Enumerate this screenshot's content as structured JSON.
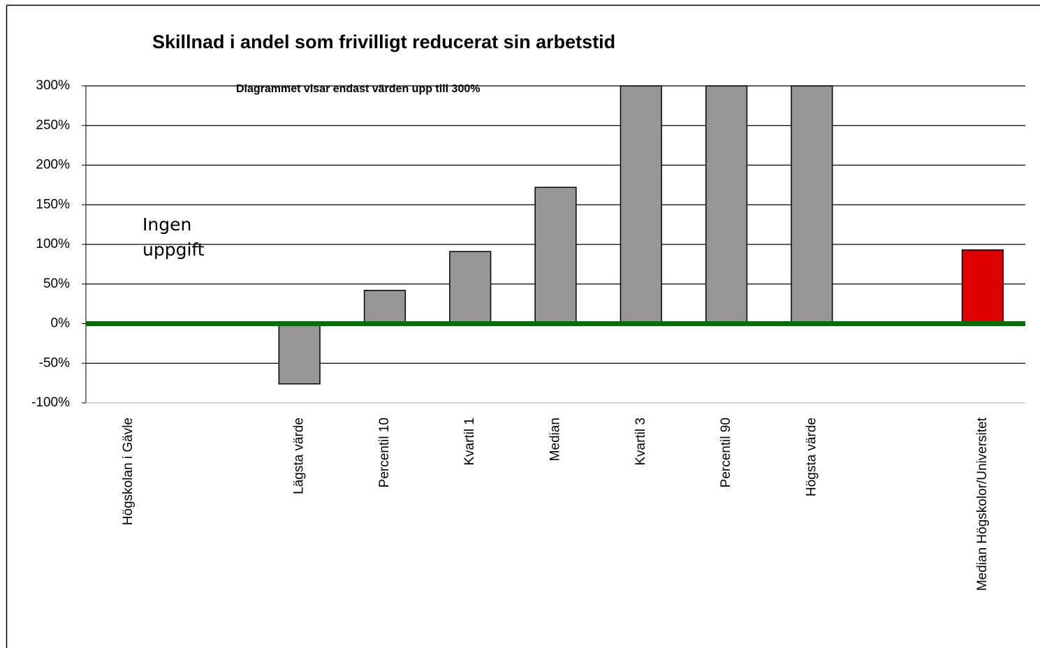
{
  "chart_data": {
    "type": "bar",
    "title": "Skillnad i andel som frivilligt reducerat sin arbetstid",
    "annotations": [
      {
        "text": "Diagrammet visar endast värden upp till 300%"
      },
      {
        "text": "Ingen uppgift"
      }
    ],
    "categories": [
      "Högskolan i Gävle",
      null,
      "Lägsta värde",
      "Percentil 10",
      "Kvartil 1",
      "Median",
      "Kvartil 3",
      "Percentil 90",
      "Högsta värde",
      null,
      "Median Högskolor/Universitet"
    ],
    "values": [
      null,
      null,
      -76,
      42,
      91,
      172,
      300,
      300,
      300,
      null,
      93
    ],
    "colors": [
      "#969696",
      "#969696",
      "#969696",
      "#969696",
      "#969696",
      "#969696",
      "#969696",
      "#969696",
      "#969696",
      "#969696",
      "#dd0000"
    ],
    "ylim": [
      -100,
      300
    ],
    "yticks": [
      {
        "value": -100,
        "label": "-100%"
      },
      {
        "value": -50,
        "label": "-50%"
      },
      {
        "value": 0,
        "label": "0%"
      },
      {
        "value": 50,
        "label": "50%"
      },
      {
        "value": 100,
        "label": "100%"
      },
      {
        "value": 150,
        "label": "150%"
      },
      {
        "value": 200,
        "label": "200%"
      },
      {
        "value": 250,
        "label": "250%"
      },
      {
        "value": 300,
        "label": "300%"
      }
    ],
    "grid": true,
    "zero_line_color": "#0b6a0b"
  }
}
